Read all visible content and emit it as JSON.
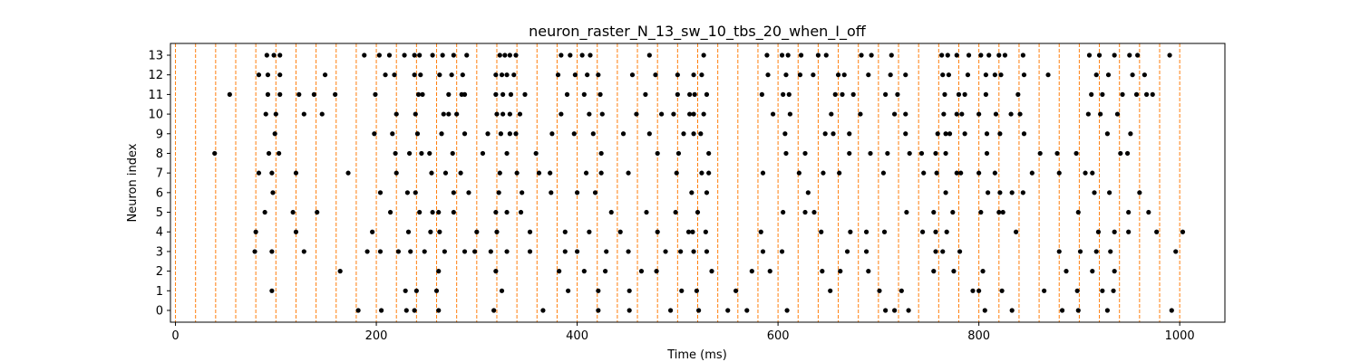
{
  "chart_data": {
    "type": "scatter",
    "title": "neuron_raster_N_13_sw_10_tbs_20_when_I_off",
    "xlabel": "Time (ms)",
    "ylabel": "Neuron index",
    "xlim": [
      -5,
      1045
    ],
    "ylim": [
      -0.6,
      13.6
    ],
    "x_ticks": [
      0,
      200,
      400,
      600,
      800,
      1000
    ],
    "y_ticks": [
      0,
      1,
      2,
      3,
      4,
      5,
      6,
      7,
      8,
      9,
      10,
      11,
      12,
      13
    ],
    "grid": false,
    "vlines": {
      "style": "dashed",
      "color": "#ff7f0e",
      "x": [
        0,
        20,
        40,
        60,
        80,
        100,
        120,
        140,
        160,
        180,
        200,
        220,
        240,
        260,
        280,
        300,
        320,
        340,
        360,
        380,
        400,
        420,
        440,
        460,
        480,
        500,
        520,
        540,
        560,
        580,
        600,
        620,
        640,
        660,
        680,
        700,
        720,
        740,
        760,
        780,
        800,
        820,
        840,
        860,
        880,
        900,
        920,
        940,
        960,
        980,
        1000
      ]
    },
    "marker_color": "#000000",
    "spikes": [
      {
        "neuron": 13,
        "times": [
          91,
          98,
          104,
          188,
          203,
          213,
          228,
          238,
          243,
          256,
          266,
          277,
          290,
          323,
          328,
          333,
          339,
          384,
          393,
          405,
          413,
          472,
          526,
          589,
          604,
          610,
          623,
          640,
          648,
          683,
          693,
          713,
          763,
          769,
          778,
          790,
          802,
          810,
          820,
          826,
          844,
          910,
          920,
          935,
          950,
          958,
          990
        ]
      },
      {
        "neuron": 12,
        "times": [
          83,
          92,
          104,
          149,
          209,
          218,
          238,
          244,
          263,
          275,
          286,
          319,
          325,
          330,
          337,
          381,
          398,
          410,
          421,
          455,
          478,
          500,
          516,
          524,
          590,
          608,
          622,
          635,
          660,
          666,
          690,
          712,
          727,
          764,
          770,
          789,
          807,
          816,
          822,
          845,
          869,
          917,
          929,
          953,
          965
        ]
      },
      {
        "neuron": 11,
        "times": [
          54,
          92,
          104,
          123,
          138,
          159,
          199,
          242,
          246,
          272,
          285,
          288,
          319,
          326,
          334,
          348,
          390,
          407,
          423,
          468,
          500,
          512,
          517,
          529,
          584,
          605,
          611,
          657,
          664,
          675,
          707,
          719,
          766,
          780,
          786,
          807,
          839,
          912,
          923,
          943,
          957,
          967,
          973
        ]
      },
      {
        "neuron": 10,
        "times": [
          90,
          100,
          128,
          146,
          220,
          239,
          267,
          272,
          280,
          320,
          326,
          333,
          343,
          384,
          412,
          425,
          459,
          484,
          496,
          512,
          516,
          526,
          595,
          612,
          653,
          682,
          716,
          727,
          765,
          778,
          783,
          800,
          817,
          832,
          841,
          909,
          921,
          938
        ]
      },
      {
        "neuron": 9,
        "times": [
          99,
          198,
          216,
          241,
          265,
          288,
          311,
          324,
          333,
          339,
          375,
          397,
          416,
          446,
          472,
          506,
          516,
          523,
          607,
          647,
          655,
          671,
          727,
          759,
          767,
          771,
          786,
          808,
          821,
          845,
          928,
          951
        ]
      },
      {
        "neuron": 8,
        "times": [
          39,
          93,
          103,
          219,
          233,
          245,
          253,
          276,
          306,
          330,
          359,
          424,
          480,
          501,
          531,
          608,
          627,
          671,
          692,
          709,
          731,
          743,
          757,
          767,
          808,
          861,
          878,
          897,
          941,
          948
        ]
      },
      {
        "neuron": 7,
        "times": [
          83,
          96,
          120,
          172,
          220,
          255,
          269,
          284,
          323,
          340,
          362,
          373,
          409,
          424,
          451,
          499,
          524,
          531,
          585,
          621,
          645,
          661,
          705,
          745,
          758,
          778,
          782,
          800,
          816,
          853,
          880,
          906,
          913
        ]
      },
      {
        "neuron": 6,
        "times": [
          97,
          204,
          231,
          239,
          277,
          292,
          322,
          345,
          374,
          400,
          418,
          514,
          529,
          630,
          767,
          809,
          821,
          833,
          844,
          915,
          930,
          960
        ]
      },
      {
        "neuron": 5,
        "times": [
          89,
          117,
          141,
          214,
          243,
          256,
          262,
          277,
          319,
          330,
          344,
          434,
          469,
          498,
          520,
          605,
          627,
          636,
          728,
          755,
          774,
          802,
          820,
          824,
          899,
          949,
          969
        ]
      },
      {
        "neuron": 4,
        "times": [
          80,
          120,
          196,
          232,
          254,
          263,
          300,
          320,
          353,
          388,
          412,
          443,
          480,
          511,
          515,
          528,
          583,
          643,
          672,
          688,
          706,
          744,
          757,
          768,
          837,
          919,
          935,
          949,
          977,
          1003
        ]
      },
      {
        "neuron": 3,
        "times": [
          79,
          96,
          128,
          191,
          204,
          222,
          234,
          248,
          268,
          288,
          298,
          314,
          330,
          353,
          388,
          400,
          429,
          451,
          488,
          503,
          516,
          529,
          585,
          604,
          669,
          688,
          757,
          764,
          781,
          880,
          901,
          917,
          931,
          996
        ]
      },
      {
        "neuron": 2,
        "times": [
          164,
          262,
          319,
          382,
          407,
          428,
          464,
          479,
          534,
          574,
          592,
          644,
          662,
          690,
          755,
          775,
          804,
          887,
          913,
          935
        ]
      },
      {
        "neuron": 1,
        "times": [
          96,
          229,
          240,
          260,
          325,
          391,
          421,
          452,
          504,
          519,
          558,
          652,
          701,
          723,
          794,
          800,
          823,
          865,
          898,
          923,
          934
        ]
      },
      {
        "neuron": 0,
        "times": [
          182,
          205,
          230,
          238,
          262,
          317,
          366,
          421,
          452,
          493,
          521,
          550,
          569,
          609,
          707,
          716,
          730,
          806,
          833,
          883,
          899,
          928,
          992
        ]
      }
    ]
  }
}
